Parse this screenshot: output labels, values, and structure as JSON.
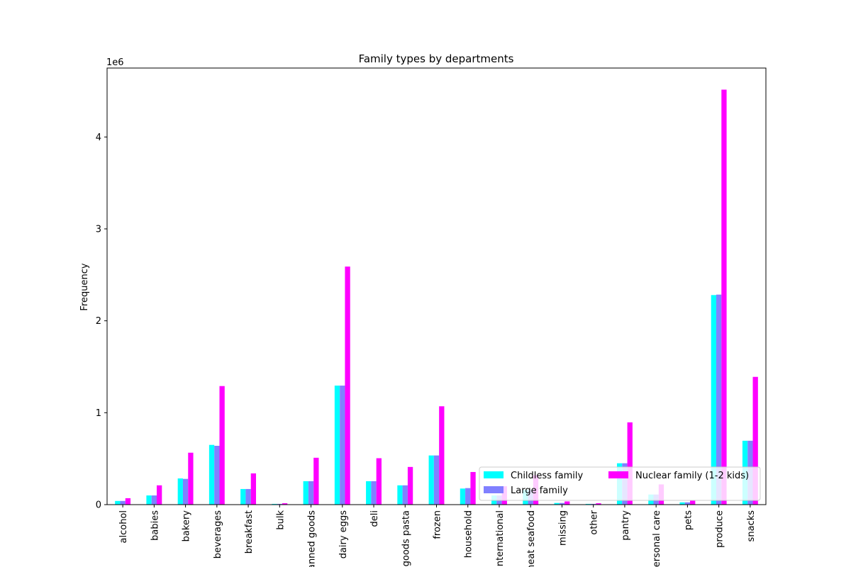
{
  "chart_data": {
    "type": "bar",
    "title": "Family types by departments",
    "xlabel": "",
    "ylabel": "Frequency",
    "offset_label": "1e6",
    "ylim": [
      0,
      4750000
    ],
    "yticks": [
      0,
      1000000,
      2000000,
      3000000,
      4000000
    ],
    "ytick_labels": [
      "0",
      "1",
      "2",
      "3",
      "4"
    ],
    "grid": false,
    "legend_position": "lower right",
    "categories": [
      "alcohol",
      "babies",
      "bakery",
      "beverages",
      "breakfast",
      "bulk",
      "canned goods",
      "dairy eggs",
      "deli",
      "dry goods pasta",
      "frozen",
      "household",
      "international",
      "meat seafood",
      "missing",
      "other",
      "pantry",
      "personal care",
      "pets",
      "produce",
      "snacks"
    ],
    "series": [
      {
        "name": "Childless family",
        "color": "#00ffff",
        "values": [
          40000,
          100000,
          285000,
          650000,
          170000,
          8000,
          255000,
          1295000,
          255000,
          210000,
          535000,
          175000,
          100000,
          160000,
          18000,
          8000,
          450000,
          110000,
          25000,
          2280000,
          695000
        ]
      },
      {
        "name": "Large family",
        "color": "#8080ff",
        "values": [
          40000,
          100000,
          280000,
          640000,
          170000,
          8000,
          255000,
          1295000,
          255000,
          210000,
          535000,
          180000,
          100000,
          160000,
          18000,
          8000,
          450000,
          110000,
          25000,
          2285000,
          695000
        ]
      },
      {
        "name": "Nuclear family (1-2 kids)",
        "color": "#ff00ff",
        "values": [
          70000,
          210000,
          565000,
          1290000,
          340000,
          15000,
          510000,
          2590000,
          505000,
          410000,
          1070000,
          355000,
          200000,
          320000,
          35000,
          15000,
          895000,
          220000,
          50000,
          4515000,
          1390000
        ]
      }
    ]
  }
}
